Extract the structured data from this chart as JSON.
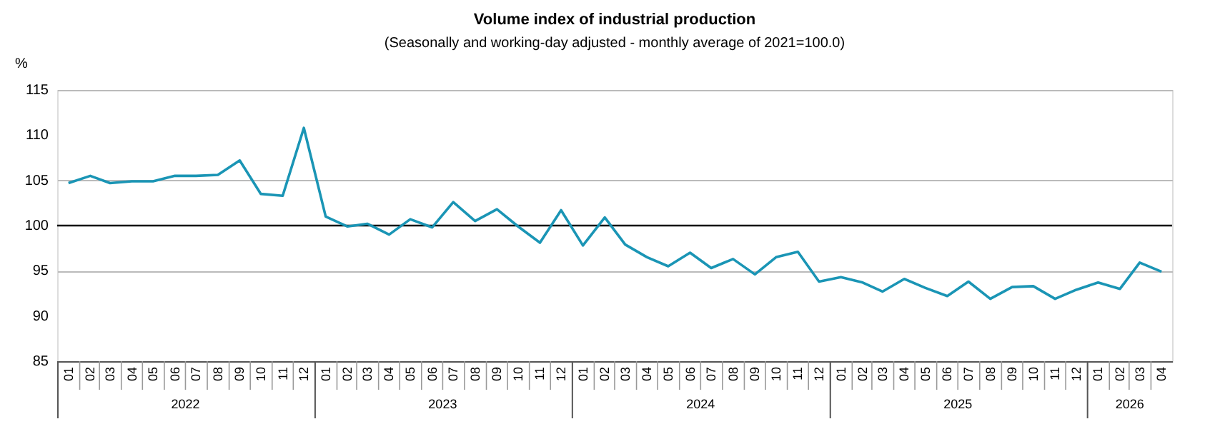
{
  "chart_data": {
    "type": "line",
    "title": "Volume index of industrial production",
    "subtitle": "(Seasonally and working-day adjusted - monthly average of 2021=100.0)",
    "ylabel": "%",
    "x": [
      "2022-01",
      "2022-02",
      "2022-03",
      "2022-04",
      "2022-05",
      "2022-06",
      "2022-07",
      "2022-08",
      "2022-09",
      "2022-10",
      "2022-11",
      "2022-12",
      "2023-01",
      "2023-02",
      "2023-03",
      "2023-04",
      "2023-05",
      "2023-06",
      "2023-07",
      "2023-08",
      "2023-09",
      "2023-10",
      "2023-11",
      "2023-12",
      "2024-01",
      "2024-02",
      "2024-03",
      "2024-04",
      "2024-05",
      "2024-06",
      "2024-07",
      "2024-08",
      "2024-09",
      "2024-10",
      "2024-11",
      "2024-12",
      "2025-01",
      "2025-02",
      "2025-03",
      "2025-04",
      "2025-05",
      "2025-06",
      "2025-07",
      "2025-08",
      "2025-09",
      "2025-10",
      "2025-11",
      "2025-12",
      "2026-01",
      "2026-02",
      "2026-03",
      "2026-04"
    ],
    "series": [
      {
        "color": "#1a95b5",
        "values": [
          104.7,
          105.5,
          104.7,
          104.9,
          104.9,
          105.5,
          105.5,
          105.6,
          107.2,
          103.5,
          103.3,
          110.8,
          101.0,
          99.9,
          100.2,
          99.0,
          100.7,
          99.8,
          102.6,
          100.5,
          101.8,
          99.9,
          98.1,
          101.7,
          97.8,
          100.9,
          97.9,
          96.5,
          95.5,
          97.0,
          95.3,
          96.3,
          94.6,
          96.5,
          97.1,
          93.8,
          94.3,
          93.7,
          92.7,
          94.1,
          93.1,
          92.2,
          93.8,
          91.9,
          93.2,
          93.3,
          91.9,
          92.9,
          93.7,
          93.0,
          95.9,
          94.9
        ]
      }
    ],
    "xlim": [
      "2021-12-16",
      "2026-04-16"
    ],
    "ylim": [
      85,
      115
    ],
    "yticks": [
      85,
      90,
      95,
      100,
      105,
      110,
      115
    ],
    "ref_lines": [
      {
        "axis": "y",
        "value": 100,
        "color": "#000000"
      }
    ],
    "xticks": [
      {
        "value": "2022-01",
        "label": "01"
      },
      {
        "value": "2022-02",
        "label": "02"
      },
      {
        "value": "2022-03",
        "label": "03"
      },
      {
        "value": "2022-04",
        "label": "04"
      },
      {
        "value": "2022-05",
        "label": "05"
      },
      {
        "value": "2022-06",
        "label": "06"
      },
      {
        "value": "2022-07",
        "label": "07"
      },
      {
        "value": "2022-08",
        "label": "08"
      },
      {
        "value": "2022-09",
        "label": "09"
      },
      {
        "value": "2022-10",
        "label": "10"
      },
      {
        "value": "2022-11",
        "label": "11"
      },
      {
        "value": "2022-12",
        "label": "12"
      },
      {
        "value": "2023-01",
        "label": "01"
      },
      {
        "value": "2023-02",
        "label": "02"
      },
      {
        "value": "2023-03",
        "label": "03"
      },
      {
        "value": "2023-04",
        "label": "04"
      },
      {
        "value": "2023-05",
        "label": "05"
      },
      {
        "value": "2023-06",
        "label": "06"
      },
      {
        "value": "2023-07",
        "label": "07"
      },
      {
        "value": "2023-08",
        "label": "08"
      },
      {
        "value": "2023-09",
        "label": "09"
      },
      {
        "value": "2023-10",
        "label": "10"
      },
      {
        "value": "2023-11",
        "label": "11"
      },
      {
        "value": "2023-12",
        "label": "12"
      },
      {
        "value": "2024-01",
        "label": "01"
      },
      {
        "value": "2024-02",
        "label": "02"
      },
      {
        "value": "2024-03",
        "label": "03"
      },
      {
        "value": "2024-04",
        "label": "04"
      },
      {
        "value": "2024-05",
        "label": "05"
      },
      {
        "value": "2024-06",
        "label": "06"
      },
      {
        "value": "2024-07",
        "label": "07"
      },
      {
        "value": "2024-08",
        "label": "08"
      },
      {
        "value": "2024-09",
        "label": "09"
      },
      {
        "value": "2024-10",
        "label": "10"
      },
      {
        "value": "2024-11",
        "label": "11"
      },
      {
        "value": "2024-12",
        "label": "12"
      },
      {
        "value": "2025-01",
        "label": "01"
      },
      {
        "value": "2025-02",
        "label": "02"
      },
      {
        "value": "2025-03",
        "label": "03"
      },
      {
        "value": "2025-04",
        "label": "04"
      },
      {
        "value": "2025-05",
        "label": "05"
      },
      {
        "value": "2025-06",
        "label": "06"
      },
      {
        "value": "2025-07",
        "label": "07"
      },
      {
        "value": "2025-08",
        "label": "08"
      },
      {
        "value": "2025-09",
        "label": "09"
      },
      {
        "value": "2025-10",
        "label": "10"
      },
      {
        "value": "2025-11",
        "label": "11"
      },
      {
        "value": "2025-12",
        "label": "12"
      },
      {
        "value": "2026-01",
        "label": "01"
      },
      {
        "value": "2026-02",
        "label": "02"
      },
      {
        "value": "2026-03",
        "label": "03"
      },
      {
        "value": "2026-04",
        "label": "04"
      }
    ],
    "x2ticks": [
      {
        "value": "2022-06-16",
        "label": "2022"
      },
      {
        "value": "2023-06-16",
        "label": "2023"
      },
      {
        "value": "2024-06-16",
        "label": "2024"
      },
      {
        "value": "2025-06-16",
        "label": "2025"
      },
      {
        "value": "2026-02-15",
        "label": "2026"
      }
    ],
    "x2lim": [
      "2021-12-16",
      "2026-04-16"
    ],
    "grid": "y",
    "legend": false,
    "marker": "none",
    "line_style": "solid"
  }
}
